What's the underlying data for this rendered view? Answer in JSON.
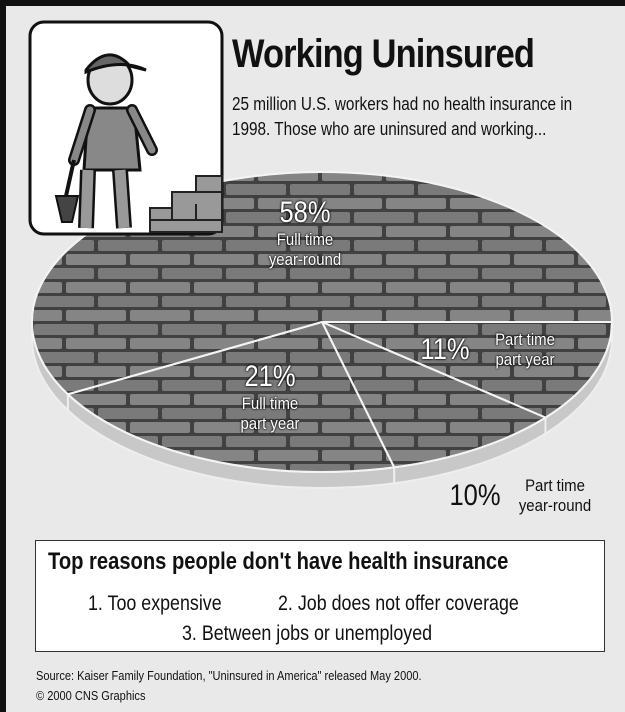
{
  "chart_data": {
    "type": "pie",
    "title": "Working Uninsured",
    "subtitle": "25 million U.S. workers had no health insurance in 1998. Those who are uninsured and working...",
    "categories": [
      "Part time part year",
      "Part time year-round",
      "Full time part year",
      "Full time year-round"
    ],
    "values": [
      11,
      10,
      21,
      58
    ],
    "value_labels": [
      "11%",
      "10%",
      "21%",
      "58%"
    ],
    "colors": [
      "#6f6f6f",
      "#6f6f6f",
      "#6f6f6f",
      "#6f6f6f"
    ]
  },
  "reasons": {
    "title": "Top reasons people don't have health insurance",
    "items": [
      "1. Too expensive",
      "2. Job does not offer coverage",
      "3. Between jobs or unemployed"
    ]
  },
  "source": "Source: Kaiser Family Foundation, \"Uninsured in America\" released May 2000.",
  "copyright": "© 2000 CNS Graphics"
}
